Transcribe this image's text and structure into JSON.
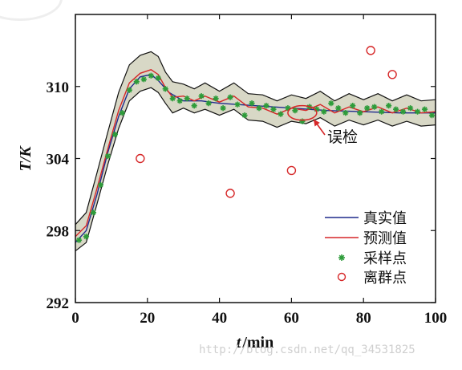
{
  "chart_data": {
    "type": "line",
    "xlabel_var": "t",
    "xlabel_unit": "/min",
    "ylabel": "T/K",
    "xlim": [
      0,
      100
    ],
    "ylim": [
      292,
      316
    ],
    "xticks": [
      0,
      20,
      40,
      60,
      80,
      100
    ],
    "yticks": [
      292,
      298,
      304,
      310
    ],
    "legend_position": "bottom-right",
    "series": [
      {
        "name": "真实值",
        "color": "#1f2a8c",
        "x": [
          0,
          3,
          6,
          9,
          12,
          15,
          18,
          21,
          23,
          26,
          30,
          35,
          40,
          50,
          60,
          70,
          80,
          90,
          100
        ],
        "y": [
          297.0,
          298.0,
          301.0,
          304.5,
          307.5,
          309.8,
          310.8,
          311.0,
          310.5,
          309.5,
          308.8,
          308.8,
          308.6,
          308.4,
          308.2,
          308.0,
          307.9,
          307.8,
          307.8
        ]
      },
      {
        "name": "预测值",
        "color": "#d62728",
        "x": [
          0,
          3,
          6,
          9,
          12,
          15,
          18,
          21,
          23,
          25,
          27,
          30,
          33,
          36,
          40,
          44,
          48,
          52,
          56,
          60,
          64,
          68,
          72,
          76,
          80,
          84,
          88,
          92,
          96,
          100
        ],
        "y": [
          297.5,
          298.4,
          301.5,
          304.8,
          308.0,
          310.3,
          311.1,
          311.4,
          311.0,
          309.9,
          309.1,
          309.2,
          308.8,
          309.2,
          308.7,
          309.2,
          308.3,
          308.2,
          307.7,
          308.2,
          308.0,
          308.5,
          307.8,
          308.3,
          307.9,
          308.3,
          307.8,
          308.2,
          307.8,
          307.9
        ]
      }
    ],
    "band": {
      "x": [
        0,
        3,
        6,
        9,
        12,
        15,
        18,
        21,
        23,
        25,
        27,
        30,
        33,
        36,
        40,
        44,
        48,
        52,
        56,
        60,
        64,
        68,
        72,
        76,
        80,
        84,
        88,
        92,
        96,
        100
      ],
      "upper": [
        298.5,
        299.5,
        302.8,
        306.2,
        309.5,
        311.8,
        312.6,
        312.9,
        312.5,
        311.2,
        310.4,
        310.2,
        309.8,
        310.3,
        309.6,
        310.3,
        309.4,
        309.3,
        308.8,
        309.3,
        309.0,
        309.6,
        308.8,
        309.4,
        308.9,
        309.4,
        308.8,
        309.3,
        308.8,
        308.9
      ],
      "lower": [
        296.3,
        297.0,
        300.2,
        303.5,
        306.5,
        308.8,
        309.6,
        309.9,
        309.5,
        308.6,
        307.8,
        308.2,
        307.8,
        308.1,
        307.6,
        308.1,
        307.2,
        307.1,
        306.6,
        307.1,
        306.9,
        307.4,
        306.7,
        307.2,
        306.8,
        307.2,
        306.7,
        307.1,
        306.7,
        306.8
      ],
      "fill": "#d8d8c6"
    },
    "samples": {
      "name": "采样点",
      "color": "#2e9c3a",
      "x": [
        1,
        3,
        5,
        7,
        9,
        11,
        13,
        15,
        17,
        19,
        21,
        23,
        25,
        27,
        29,
        31,
        33,
        35,
        37,
        39,
        41,
        43,
        45,
        47,
        49,
        51,
        53,
        55,
        57,
        59,
        61,
        63,
        65,
        67,
        69,
        71,
        73,
        75,
        77,
        79,
        81,
        83,
        85,
        87,
        89,
        91,
        93,
        95,
        97,
        99
      ],
      "y": [
        297.2,
        297.5,
        299.5,
        301.8,
        304.2,
        306.0,
        307.8,
        309.7,
        310.4,
        310.6,
        310.9,
        310.7,
        309.8,
        309.0,
        308.8,
        309.0,
        308.4,
        309.2,
        308.6,
        309.0,
        308.2,
        309.1,
        308.5,
        307.6,
        308.6,
        308.2,
        308.4,
        308.1,
        307.7,
        308.2,
        308.0,
        307.1,
        308.3,
        308.1,
        307.9,
        308.6,
        308.2,
        307.8,
        308.4,
        307.8,
        308.2,
        308.3,
        307.9,
        308.4,
        308.1,
        307.9,
        308.2,
        307.9,
        308.1,
        307.6
      ]
    },
    "outliers": {
      "name": "离群点",
      "color": "#d62728",
      "x": [
        18,
        43,
        60,
        82,
        88
      ],
      "y": [
        304.0,
        301.1,
        303.0,
        313.0,
        311.0
      ]
    },
    "annotation": {
      "text": "误检",
      "target_x": 63,
      "target_y": 307.8
    }
  },
  "watermark": "http://blog.csdn.net/qq_34531825"
}
